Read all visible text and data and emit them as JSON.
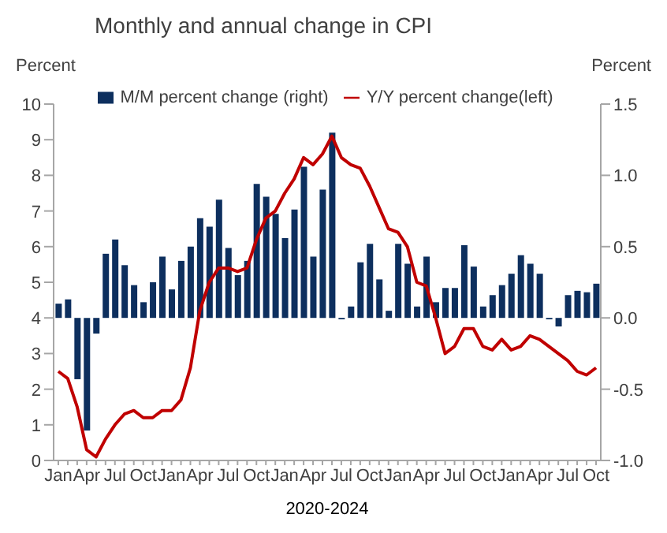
{
  "chart_data": {
    "type": "bar",
    "title": "Monthly and annual change in CPI",
    "xlabel": "2020-2024",
    "ylabel": "Percent",
    "y2label": "Percent",
    "categories": [
      "Jan",
      null,
      null,
      "Apr",
      null,
      null,
      "Jul",
      null,
      null,
      "Oct",
      null,
      null,
      "Jan",
      null,
      null,
      "Apr",
      null,
      null,
      "Jul",
      null,
      null,
      "Oct",
      null,
      null,
      "Jan",
      null,
      null,
      "Apr",
      null,
      null,
      "Jul",
      null,
      null,
      "Oct",
      null,
      null,
      "Jan",
      null,
      null,
      "Apr",
      null,
      null,
      "Jul",
      null,
      null,
      "Oct",
      null,
      null,
      "Jan",
      null,
      null,
      "Apr",
      null,
      null,
      "Jul",
      null,
      null,
      "Oct"
    ],
    "series": [
      {
        "name": "M/M percent change (right)",
        "axis": "y2",
        "color": "#0d2f5e",
        "values": [
          0.1,
          0.13,
          -0.43,
          -0.79,
          -0.11,
          0.45,
          0.55,
          0.37,
          0.23,
          0.11,
          0.25,
          0.43,
          0.2,
          0.4,
          0.5,
          0.7,
          0.64,
          0.83,
          0.49,
          0.3,
          0.4,
          0.94,
          0.85,
          0.73,
          0.56,
          0.76,
          1.06,
          0.43,
          0.9,
          1.3,
          -0.01,
          0.08,
          0.39,
          0.52,
          0.27,
          0.05,
          0.52,
          0.38,
          0.08,
          0.43,
          0.11,
          0.21,
          0.21,
          0.51,
          0.36,
          0.08,
          0.16,
          0.23,
          0.31,
          0.44,
          0.38,
          0.31,
          -0.01,
          -0.06,
          0.16,
          0.19,
          0.18,
          0.24
        ]
      },
      {
        "name": "Y/Y percent change(left)",
        "type": "line",
        "axis": "y",
        "color": "#c00000",
        "values": [
          2.5,
          2.3,
          1.5,
          0.3,
          0.1,
          0.6,
          1.0,
          1.3,
          1.4,
          1.2,
          1.2,
          1.4,
          1.4,
          1.7,
          2.6,
          4.2,
          5.0,
          5.4,
          5.4,
          5.3,
          5.4,
          6.2,
          6.8,
          7.0,
          7.5,
          7.9,
          8.5,
          8.3,
          8.6,
          9.1,
          8.5,
          8.3,
          8.2,
          7.7,
          7.1,
          6.5,
          6.4,
          6.0,
          5.0,
          4.9,
          4.0,
          3.0,
          3.2,
          3.7,
          3.7,
          3.2,
          3.1,
          3.4,
          3.1,
          3.2,
          3.5,
          3.4,
          3.2,
          3.0,
          2.8,
          2.5,
          2.4,
          2.6
        ]
      }
    ],
    "ylim": [
      0,
      10
    ],
    "yticks": [
      0,
      1,
      2,
      3,
      4,
      5,
      6,
      7,
      8,
      9,
      10
    ],
    "y2lim": [
      -1,
      1.5
    ],
    "y2ticks": [
      {
        "value": -1,
        "label": "-1.0"
      },
      {
        "value": -0.5,
        "label": "-0.5"
      },
      {
        "value": 0,
        "label": "0.0"
      },
      {
        "value": 0.5,
        "label": "0.5"
      },
      {
        "value": 1,
        "label": "1.0"
      },
      {
        "value": 1.5,
        "label": "1.5"
      }
    ],
    "grid": false,
    "legend": "top",
    "marker": "none",
    "line_style": "solid"
  }
}
